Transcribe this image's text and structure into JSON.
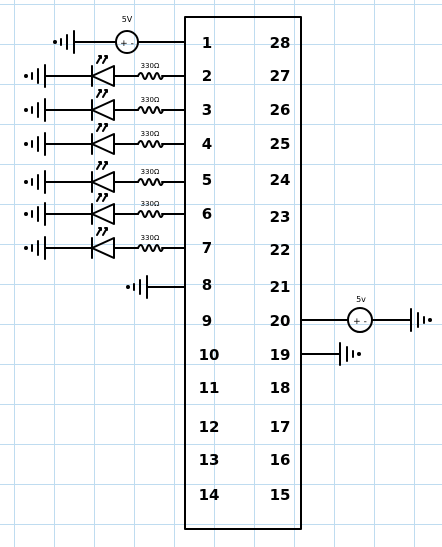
{
  "chip": {
    "left_pins": [
      "1",
      "2",
      "3",
      "4",
      "5",
      "6",
      "7",
      "8",
      "9",
      "10",
      "11",
      "12",
      "13",
      "14"
    ],
    "right_pins": [
      "28",
      "27",
      "26",
      "25",
      "24",
      "23",
      "22",
      "21",
      "20",
      "19",
      "18",
      "17",
      "16",
      "15"
    ]
  },
  "sources": [
    {
      "label": "5V",
      "polarity": "+ -"
    },
    {
      "label": "5v",
      "polarity": "+ -"
    }
  ],
  "resistor_labels": [
    "330Ω",
    "330Ω",
    "330Ω",
    "330Ω",
    "330Ω",
    "330Ω"
  ],
  "colors": {
    "ink": "#000000",
    "grid": "#bfdcf0",
    "paper": "#ffffff"
  },
  "icons": [
    "ground-icon",
    "led-icon",
    "resistor-icon",
    "voltage-source-icon"
  ]
}
